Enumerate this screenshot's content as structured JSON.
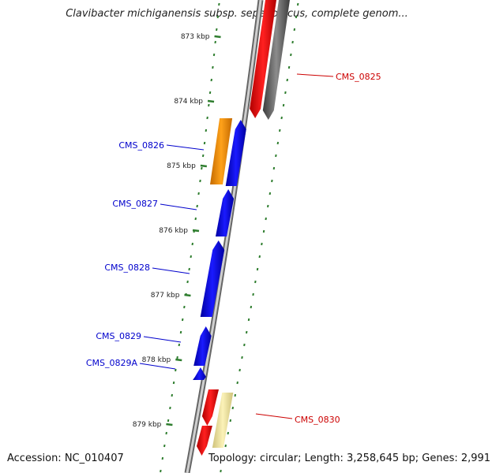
{
  "title": "Clavibacter michiganensis subsp. sepedonicus, complete genom...",
  "footer": {
    "accession": "Accession: NC_010407",
    "topology": "Topology: circular; Length: 3,258,645 bp; Genes: 2,991"
  },
  "colors": {
    "backbone": "#8a8a8a",
    "tick": "#2e7d2e",
    "cds_forward": "#0000ee",
    "cds_reverse": "#ee0000",
    "cds_gray": "#6e6e6e",
    "cds_orange": "#ff9900",
    "cds_pale": "#f2e8a0",
    "label_blue": "#0000cc",
    "label_red": "#cc0000"
  },
  "ticks": [
    {
      "label": "873 kbp"
    },
    {
      "label": "874 kbp"
    },
    {
      "label": "875 kbp"
    },
    {
      "label": "876 kbp"
    },
    {
      "label": "877 kbp"
    },
    {
      "label": "878 kbp"
    },
    {
      "label": "879 kbp"
    }
  ],
  "genes": [
    {
      "name": "CMS_0825",
      "strand": "reverse",
      "color": "red"
    },
    {
      "name": "CMS_0826",
      "strand": "forward",
      "color": "blue"
    },
    {
      "name": "CMS_0827",
      "strand": "forward",
      "color": "blue"
    },
    {
      "name": "CMS_0828",
      "strand": "forward",
      "color": "blue"
    },
    {
      "name": "CMS_0829",
      "strand": "forward",
      "color": "blue"
    },
    {
      "name": "CMS_0829A",
      "strand": "forward",
      "color": "blue"
    },
    {
      "name": "CMS_0830",
      "strand": "reverse",
      "color": "red"
    }
  ]
}
